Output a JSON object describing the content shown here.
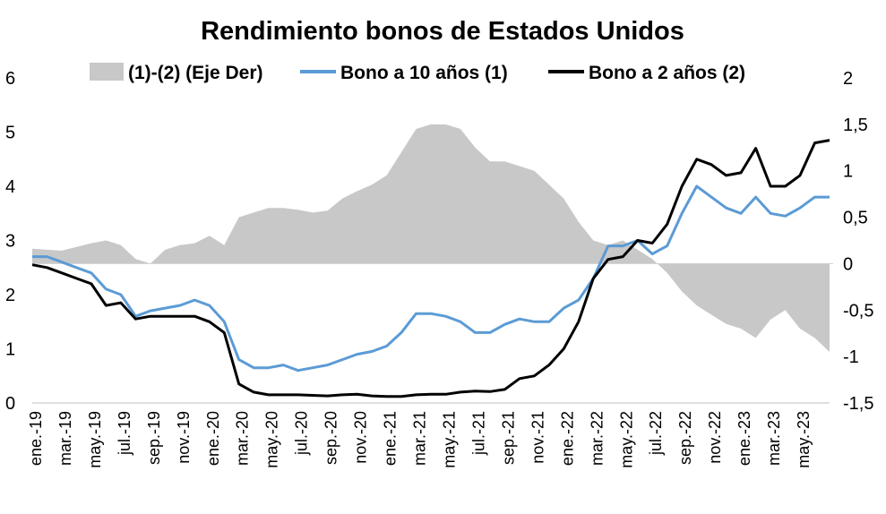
{
  "chart_data": {
    "type": "line",
    "title": "Rendimiento bonos de Estados Unidos",
    "legend_position": "top",
    "x_ticks": [
      "ene.-19",
      "mar.-19",
      "may.-19",
      "jul.-19",
      "sep.-19",
      "nov.-19",
      "ene.-20",
      "mar.-20",
      "may.-20",
      "jul.-20",
      "sep.-20",
      "nov.-20",
      "ene.-21",
      "mar.-21",
      "may.-21",
      "jul.-21",
      "sep.-21",
      "nov.-21",
      "ene.-22",
      "mar.-22",
      "may.-22",
      "jul.-22",
      "sep.-22",
      "nov.-22",
      "ene.-23",
      "mar.-23",
      "may.-23"
    ],
    "y_left": {
      "ylim": [
        0,
        6
      ],
      "ticks": [
        "0",
        "1",
        "2",
        "3",
        "4",
        "5",
        "6"
      ]
    },
    "y_right": {
      "ylim": [
        -1.5,
        2
      ],
      "ticks": [
        "-1,5",
        "-1",
        "-0,5",
        "0",
        "0,5",
        "1",
        "1,5",
        "2"
      ]
    },
    "grid": false,
    "series": [
      {
        "name": "(1)-(2) (Eje Der)",
        "kind": "area",
        "axis": "right",
        "color": "#c8c8c8",
        "x": [
          "2019-01",
          "2019-02",
          "2019-03",
          "2019-04",
          "2019-05",
          "2019-06",
          "2019-07",
          "2019-08",
          "2019-09",
          "2019-10",
          "2019-11",
          "2019-12",
          "2020-01",
          "2020-02",
          "2020-03",
          "2020-04",
          "2020-05",
          "2020-06",
          "2020-07",
          "2020-08",
          "2020-09",
          "2020-10",
          "2020-11",
          "2020-12",
          "2021-01",
          "2021-02",
          "2021-03",
          "2021-04",
          "2021-05",
          "2021-06",
          "2021-07",
          "2021-08",
          "2021-09",
          "2021-10",
          "2021-11",
          "2021-12",
          "2022-01",
          "2022-02",
          "2022-03",
          "2022-04",
          "2022-05",
          "2022-06",
          "2022-07",
          "2022-08",
          "2022-09",
          "2022-10",
          "2022-11",
          "2022-12",
          "2023-01",
          "2023-02",
          "2023-03",
          "2023-04",
          "2023-05",
          "2023-06",
          "2023-07"
        ],
        "values": [
          0.16,
          0.15,
          0.14,
          0.18,
          0.22,
          0.25,
          0.2,
          0.05,
          0.0,
          0.15,
          0.2,
          0.22,
          0.3,
          0.2,
          0.5,
          0.55,
          0.6,
          0.6,
          0.58,
          0.55,
          0.57,
          0.7,
          0.78,
          0.85,
          0.95,
          1.2,
          1.45,
          1.5,
          1.5,
          1.45,
          1.25,
          1.1,
          1.1,
          1.05,
          1.0,
          0.85,
          0.7,
          0.45,
          0.25,
          0.2,
          0.25,
          0.15,
          0.05,
          -0.1,
          -0.3,
          -0.45,
          -0.55,
          -0.65,
          -0.7,
          -0.8,
          -0.6,
          -0.5,
          -0.7,
          -0.8,
          -0.95
        ]
      },
      {
        "name": "Bono a 10 años (1)",
        "kind": "line",
        "axis": "left",
        "color": "#5b9bd5",
        "x": [
          "2019-01",
          "2019-02",
          "2019-03",
          "2019-04",
          "2019-05",
          "2019-06",
          "2019-07",
          "2019-08",
          "2019-09",
          "2019-10",
          "2019-11",
          "2019-12",
          "2020-01",
          "2020-02",
          "2020-03",
          "2020-04",
          "2020-05",
          "2020-06",
          "2020-07",
          "2020-08",
          "2020-09",
          "2020-10",
          "2020-11",
          "2020-12",
          "2021-01",
          "2021-02",
          "2021-03",
          "2021-04",
          "2021-05",
          "2021-06",
          "2021-07",
          "2021-08",
          "2021-09",
          "2021-10",
          "2021-11",
          "2021-12",
          "2022-01",
          "2022-02",
          "2022-03",
          "2022-04",
          "2022-05",
          "2022-06",
          "2022-07",
          "2022-08",
          "2022-09",
          "2022-10",
          "2022-11",
          "2022-12",
          "2023-01",
          "2023-02",
          "2023-03",
          "2023-04",
          "2023-05",
          "2023-06",
          "2023-07"
        ],
        "values": [
          2.7,
          2.7,
          2.6,
          2.5,
          2.4,
          2.1,
          2.0,
          1.6,
          1.7,
          1.75,
          1.8,
          1.9,
          1.8,
          1.5,
          0.8,
          0.65,
          0.65,
          0.7,
          0.6,
          0.65,
          0.7,
          0.8,
          0.9,
          0.95,
          1.05,
          1.3,
          1.65,
          1.65,
          1.6,
          1.5,
          1.3,
          1.3,
          1.45,
          1.55,
          1.5,
          1.5,
          1.75,
          1.9,
          2.3,
          2.9,
          2.9,
          3.0,
          2.75,
          2.9,
          3.5,
          4.0,
          3.8,
          3.6,
          3.5,
          3.8,
          3.5,
          3.45,
          3.6,
          3.8,
          3.8
        ]
      },
      {
        "name": "Bono a 2 años (2)",
        "kind": "line",
        "axis": "left",
        "color": "#000000",
        "x": [
          "2019-01",
          "2019-02",
          "2019-03",
          "2019-04",
          "2019-05",
          "2019-06",
          "2019-07",
          "2019-08",
          "2019-09",
          "2019-10",
          "2019-11",
          "2019-12",
          "2020-01",
          "2020-02",
          "2020-03",
          "2020-04",
          "2020-05",
          "2020-06",
          "2020-07",
          "2020-08",
          "2020-09",
          "2020-10",
          "2020-11",
          "2020-12",
          "2021-01",
          "2021-02",
          "2021-03",
          "2021-04",
          "2021-05",
          "2021-06",
          "2021-07",
          "2021-08",
          "2021-09",
          "2021-10",
          "2021-11",
          "2021-12",
          "2022-01",
          "2022-02",
          "2022-03",
          "2022-04",
          "2022-05",
          "2022-06",
          "2022-07",
          "2022-08",
          "2022-09",
          "2022-10",
          "2022-11",
          "2022-12",
          "2023-01",
          "2023-02",
          "2023-03",
          "2023-04",
          "2023-05",
          "2023-06",
          "2023-07"
        ],
        "values": [
          2.55,
          2.5,
          2.4,
          2.3,
          2.2,
          1.8,
          1.85,
          1.55,
          1.6,
          1.6,
          1.6,
          1.6,
          1.5,
          1.3,
          0.35,
          0.2,
          0.15,
          0.15,
          0.15,
          0.14,
          0.13,
          0.15,
          0.16,
          0.13,
          0.12,
          0.12,
          0.15,
          0.16,
          0.16,
          0.2,
          0.22,
          0.21,
          0.25,
          0.45,
          0.5,
          0.7,
          1.0,
          1.5,
          2.3,
          2.65,
          2.7,
          3.0,
          2.95,
          3.3,
          4.0,
          4.5,
          4.4,
          4.2,
          4.25,
          4.7,
          4.0,
          4.0,
          4.2,
          4.8,
          4.85
        ]
      }
    ]
  }
}
